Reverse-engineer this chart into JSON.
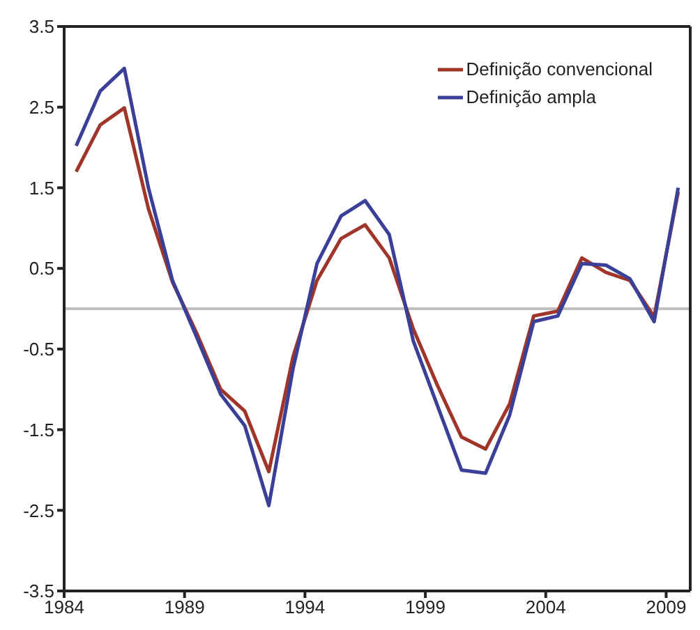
{
  "chart_data": {
    "type": "line",
    "x": [
      1984.5,
      1985.5,
      1986.5,
      1987.5,
      1988.5,
      1989.5,
      1990.5,
      1991.5,
      1992.5,
      1993.5,
      1994.5,
      1995.5,
      1996.5,
      1997.5,
      1998.5,
      1999.5,
      2000.5,
      2001.5,
      2002.5,
      2003.5,
      2004.5,
      2005.5,
      2006.5,
      2007.5,
      2008.5,
      2009.5
    ],
    "series": [
      {
        "name": "Definição convencional",
        "color": "#a0352a",
        "values": [
          1.7,
          2.28,
          2.49,
          1.24,
          0.33,
          -0.3,
          -1.0,
          -1.27,
          -2.02,
          -0.6,
          0.35,
          0.87,
          1.04,
          0.63,
          -0.25,
          -0.95,
          -1.59,
          -1.74,
          -1.18,
          -0.09,
          -0.03,
          0.63,
          0.45,
          0.35,
          -0.1,
          1.45
        ]
      },
      {
        "name": "Definição ampla",
        "color": "#3a3f98",
        "values": [
          2.02,
          2.7,
          2.98,
          1.5,
          0.35,
          -0.35,
          -1.06,
          -1.45,
          -2.44,
          -0.75,
          0.56,
          1.15,
          1.34,
          0.92,
          -0.4,
          -1.2,
          -2.0,
          -2.04,
          -1.32,
          -0.16,
          -0.09,
          0.56,
          0.54,
          0.37,
          -0.16,
          1.5
        ]
      }
    ],
    "xlim": [
      1984,
      2010
    ],
    "xticks": [
      1984,
      1989,
      1994,
      1999,
      2004,
      2009
    ],
    "ylim": [
      -3.5,
      3.5
    ],
    "yticks": [
      -3.5,
      -2.5,
      -1.5,
      -0.5,
      0.5,
      1.5,
      2.5,
      3.5
    ],
    "ref_lines": [
      {
        "axis": "y",
        "value": 0,
        "color": "#c0c0c0"
      }
    ],
    "grid": false,
    "legend": "top right",
    "marker": "none",
    "line_style": "solid"
  }
}
